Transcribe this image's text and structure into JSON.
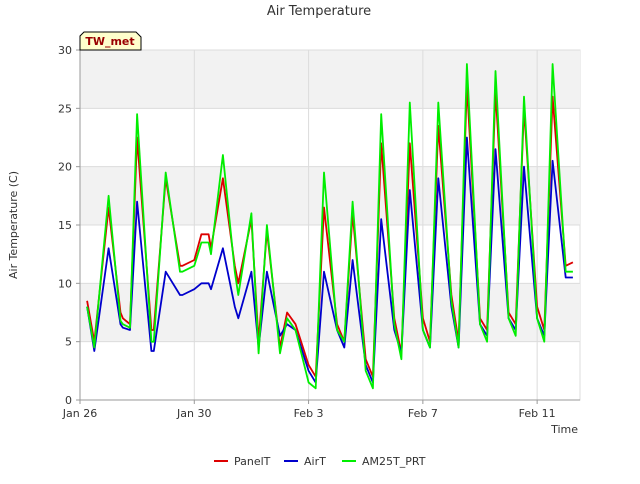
{
  "chart_data": {
    "type": "line",
    "title": "Air Temperature",
    "xlabel": "Time",
    "ylabel": "Air Temperature (C)",
    "site_label": "TW_met",
    "ylim": [
      0,
      30
    ],
    "y_ticks": [
      0,
      5,
      10,
      15,
      20,
      25,
      30
    ],
    "xlim": [
      "Jan 26",
      "Feb 12 12:00"
    ],
    "x_ticks": [
      {
        "x": "Jan 26",
        "label": "Jan 26"
      },
      {
        "x": "Jan 30",
        "label": "Jan 30"
      },
      {
        "x": "Feb 3",
        "label": "Feb 3"
      },
      {
        "x": "Feb 7",
        "label": "Feb 7"
      },
      {
        "x": "Feb 11",
        "label": "Feb 11"
      }
    ],
    "grid": true,
    "background_bands": true,
    "legend_placement": "bottom-center",
    "series": [
      {
        "name": "PanelT",
        "color": "#dd0000",
        "x": [
          "Jan 26 06:00",
          "Jan 26 12:00",
          "Jan 27 00:00",
          "Jan 27 10:00",
          "Jan 27 12:00",
          "Jan 27 18:00",
          "Jan 28 00:00",
          "Jan 28 12:00",
          "Jan 28 14:00",
          "Jan 29 00:00",
          "Jan 29 12:00",
          "Jan 29 14:00",
          "Jan 30 00:00",
          "Jan 30 06:00",
          "Jan 30 12:00",
          "Jan 30 14:00",
          "Jan 31 00:00",
          "Jan 31 10:00",
          "Jan 31 13:00",
          "Feb 1 00:00",
          "Feb 1 06:00",
          "Feb 1 13:00",
          "Feb 2 00:00",
          "Feb 2 06:00",
          "Feb 2 13:00",
          "Feb 3 00:00",
          "Feb 3 06:00",
          "Feb 3 13:00",
          "Feb 4 00:00",
          "Feb 4 06:00",
          "Feb 4 13:00",
          "Feb 5 00:00",
          "Feb 5 06:00",
          "Feb 5 13:00",
          "Feb 6 00:00",
          "Feb 6 06:00",
          "Feb 6 13:00",
          "Feb 7 00:00",
          "Feb 7 06:00",
          "Feb 7 13:00",
          "Feb 8 00:00",
          "Feb 8 06:00",
          "Feb 8 13:00",
          "Feb 9 00:00",
          "Feb 9 06:00",
          "Feb 9 13:00",
          "Feb 10 00:00",
          "Feb 10 06:00",
          "Feb 10 13:00",
          "Feb 11 00:00",
          "Feb 11 06:00",
          "Feb 11 13:00",
          "Feb 12 00:00",
          "Feb 12 06:00"
        ],
        "y": [
          8.5,
          5.0,
          16.5,
          7.5,
          7.0,
          6.5,
          22.5,
          6.0,
          6.0,
          19.0,
          11.5,
          11.5,
          12.0,
          14.2,
          14.2,
          13.0,
          19.0,
          11.5,
          10.0,
          15.5,
          5.0,
          14.5,
          4.5,
          7.5,
          6.5,
          3.0,
          2.0,
          16.5,
          6.5,
          5.0,
          16.0,
          3.5,
          2.0,
          22.0,
          7.0,
          4.0,
          22.0,
          7.0,
          5.0,
          23.5,
          9.0,
          5.0,
          27.0,
          7.0,
          6.0,
          26.5,
          7.5,
          6.5,
          25.0,
          8.0,
          6.0,
          26.0,
          11.5,
          11.8
        ]
      },
      {
        "name": "AirT",
        "color": "#0000cc",
        "x": [
          "Jan 26 06:00",
          "Jan 26 12:00",
          "Jan 27 00:00",
          "Jan 27 10:00",
          "Jan 27 12:00",
          "Jan 27 18:00",
          "Jan 28 00:00",
          "Jan 28 12:00",
          "Jan 28 14:00",
          "Jan 29 00:00",
          "Jan 29 12:00",
          "Jan 29 14:00",
          "Jan 30 00:00",
          "Jan 30 06:00",
          "Jan 30 12:00",
          "Jan 30 14:00",
          "Jan 31 00:00",
          "Jan 31 10:00",
          "Jan 31 13:00",
          "Feb 1 00:00",
          "Feb 1 06:00",
          "Feb 1 13:00",
          "Feb 2 00:00",
          "Feb 2 06:00",
          "Feb 2 13:00",
          "Feb 3 00:00",
          "Feb 3 06:00",
          "Feb 3 13:00",
          "Feb 4 00:00",
          "Feb 4 06:00",
          "Feb 4 13:00",
          "Feb 5 00:00",
          "Feb 5 06:00",
          "Feb 5 13:00",
          "Feb 6 00:00",
          "Feb 6 06:00",
          "Feb 6 13:00",
          "Feb 7 00:00",
          "Feb 7 06:00",
          "Feb 7 13:00",
          "Feb 8 00:00",
          "Feb 8 06:00",
          "Feb 8 13:00",
          "Feb 9 00:00",
          "Feb 9 06:00",
          "Feb 9 13:00",
          "Feb 10 00:00",
          "Feb 10 06:00",
          "Feb 10 13:00",
          "Feb 11 00:00",
          "Feb 11 06:00",
          "Feb 11 13:00",
          "Feb 12 00:00",
          "Feb 12 06:00"
        ],
        "y": [
          8.0,
          4.2,
          13.0,
          6.5,
          6.2,
          6.0,
          17.0,
          4.2,
          4.2,
          11.0,
          9.0,
          9.0,
          9.5,
          10.0,
          10.0,
          9.5,
          13.0,
          8.0,
          7.0,
          11.0,
          4.5,
          11.0,
          5.5,
          6.5,
          6.0,
          2.5,
          1.5,
          11.0,
          6.0,
          4.5,
          12.0,
          3.0,
          1.5,
          15.5,
          6.0,
          4.0,
          18.0,
          6.0,
          4.5,
          19.0,
          8.0,
          4.5,
          22.5,
          6.5,
          5.5,
          21.5,
          7.0,
          6.0,
          20.0,
          7.0,
          5.5,
          20.5,
          10.5,
          10.5
        ]
      },
      {
        "name": "AM25T_PRT",
        "color": "#00ee00",
        "x": [
          "Jan 26 06:00",
          "Jan 26 12:00",
          "Jan 27 00:00",
          "Jan 27 10:00",
          "Jan 27 12:00",
          "Jan 27 18:00",
          "Jan 28 00:00",
          "Jan 28 12:00",
          "Jan 28 14:00",
          "Jan 29 00:00",
          "Jan 29 12:00",
          "Jan 29 14:00",
          "Jan 30 00:00",
          "Jan 30 06:00",
          "Jan 30 12:00",
          "Jan 30 14:00",
          "Jan 31 00:00",
          "Jan 31 10:00",
          "Jan 31 13:00",
          "Feb 1 00:00",
          "Feb 1 06:00",
          "Feb 1 13:00",
          "Feb 2 00:00",
          "Feb 2 06:00",
          "Feb 2 13:00",
          "Feb 3 00:00",
          "Feb 3 06:00",
          "Feb 3 13:00",
          "Feb 4 00:00",
          "Feb 4 06:00",
          "Feb 4 13:00",
          "Feb 5 00:00",
          "Feb 5 06:00",
          "Feb 5 13:00",
          "Feb 6 00:00",
          "Feb 6 06:00",
          "Feb 6 13:00",
          "Feb 7 00:00",
          "Feb 7 06:00",
          "Feb 7 13:00",
          "Feb 8 00:00",
          "Feb 8 06:00",
          "Feb 8 13:00",
          "Feb 9 00:00",
          "Feb 9 06:00",
          "Feb 9 13:00",
          "Feb 10 00:00",
          "Feb 10 06:00",
          "Feb 10 13:00",
          "Feb 11 00:00",
          "Feb 11 06:00",
          "Feb 11 13:00",
          "Feb 12 00:00",
          "Feb 12 06:00"
        ],
        "y": [
          8.0,
          4.5,
          17.5,
          6.8,
          6.5,
          6.2,
          24.5,
          5.0,
          5.0,
          19.5,
          11.0,
          11.0,
          11.5,
          13.5,
          13.5,
          12.5,
          21.0,
          11.0,
          9.0,
          16.0,
          4.0,
          15.0,
          4.0,
          7.0,
          6.0,
          1.5,
          1.0,
          19.5,
          6.0,
          5.0,
          17.0,
          2.5,
          1.0,
          24.5,
          6.5,
          3.5,
          25.5,
          6.0,
          4.5,
          25.5,
          8.5,
          4.5,
          28.8,
          6.5,
          5.0,
          28.2,
          7.0,
          5.5,
          26.0,
          7.0,
          5.0,
          28.8,
          11.0,
          11.0
        ]
      }
    ]
  }
}
